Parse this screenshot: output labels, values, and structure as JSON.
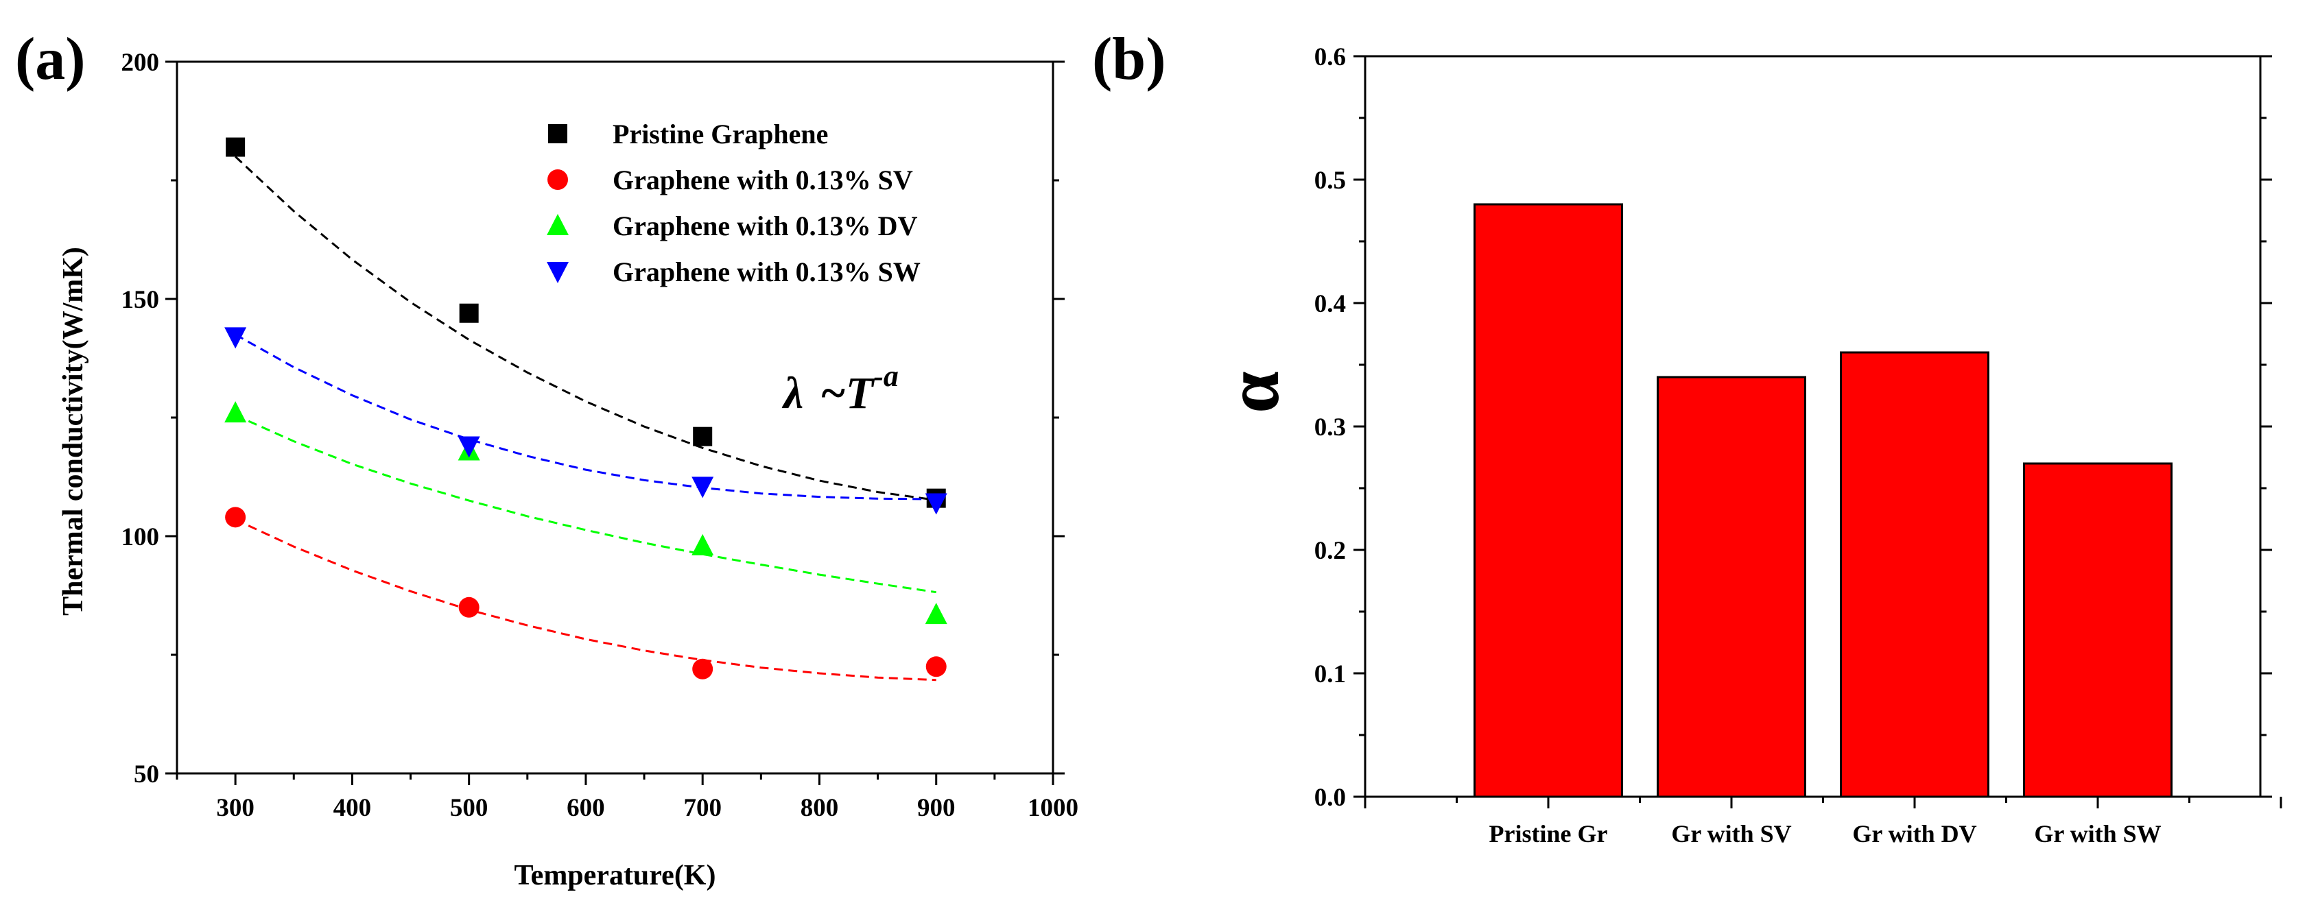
{
  "panel_labels": {
    "a": "(a)",
    "b": "(b)"
  },
  "formula": {
    "lambda": "λ",
    "tilde": "~",
    "T": "T",
    "exponent": "-a"
  },
  "chart_data": [
    {
      "type": "scatter",
      "panel": "(a)",
      "xlabel": "Temperature(K)",
      "ylabel": "Thermal conductivity(W/mK)",
      "xlim": [
        250,
        1000
      ],
      "ylim": [
        50,
        200
      ],
      "xticks": [
        300,
        400,
        500,
        600,
        700,
        800,
        900,
        1000
      ],
      "yticks": [
        50,
        100,
        150,
        200
      ],
      "legend_position": "top-right",
      "series": [
        {
          "name": "Pristine Graphene",
          "marker": "square",
          "color": "#000000",
          "x": [
            300,
            500,
            700,
            900
          ],
          "y": [
            182,
            147,
            121,
            108
          ],
          "fit": {
            "x": [
              300,
              350,
              400,
              450,
              500,
              550,
              600,
              650,
              700,
              750,
              800,
              850,
              900
            ],
            "y": [
              180,
              168.5,
              158.3,
              149.3,
              141.4,
              134.5,
              128.4,
              123.1,
              118.6,
              114.8,
              111.7,
              109.3,
              107.6
            ]
          }
        },
        {
          "name": "Graphene with 0.13% SV",
          "marker": "circle",
          "color": "#ff0000",
          "x": [
            300,
            500,
            700,
            900
          ],
          "y": [
            104,
            85,
            72,
            72.5
          ],
          "fit": {
            "x": [
              300,
              350,
              400,
              450,
              500,
              550,
              600,
              650,
              700,
              750,
              800,
              850,
              900
            ],
            "y": [
              103.5,
              97.8,
              92.8,
              88.4,
              84.5,
              81.2,
              78.3,
              75.9,
              73.9,
              72.3,
              71.1,
              70.2,
              69.7
            ]
          }
        },
        {
          "name": "Graphene with 0.13% DV",
          "marker": "triangle-up",
          "color": "#00ff00",
          "x": [
            300,
            500,
            700,
            900
          ],
          "y": [
            126,
            118,
            98,
            83.5
          ],
          "fit": {
            "x": [
              300,
              350,
              400,
              450,
              500,
              550,
              600,
              650,
              700,
              750,
              800,
              850,
              900
            ],
            "y": [
              125.5,
              120,
              115.2,
              111.1,
              107.5,
              104.2,
              101.3,
              98.6,
              96.2,
              94,
              91.9,
              90,
              88.2
            ]
          }
        },
        {
          "name": "Graphene with 0.13% SW",
          "marker": "triangle-down",
          "color": "#0000ff",
          "x": [
            300,
            500,
            700,
            900
          ],
          "y": [
            142,
            119,
            110.5,
            107
          ],
          "fit": {
            "x": [
              300,
              350,
              400,
              450,
              500,
              550,
              600,
              650,
              700,
              750,
              800,
              850,
              900
            ],
            "y": [
              142.5,
              135.6,
              129.7,
              124.6,
              120.4,
              116.9,
              114,
              111.8,
              110.2,
              109,
              108.3,
              107.9,
              107.8
            ]
          }
        }
      ]
    },
    {
      "type": "bar",
      "panel": "(b)",
      "categories": [
        "Pristine Gr",
        "Gr with SV",
        "Gr with DV",
        "Gr with SW"
      ],
      "values": [
        0.48,
        0.34,
        0.36,
        0.27
      ],
      "ylabel": "α",
      "xlabel": "",
      "ylim": [
        0,
        0.6
      ],
      "yticks": [
        "0.0",
        "0.1",
        "0.2",
        "0.3",
        "0.4",
        "0.5",
        "0.6"
      ],
      "bar_color": "#ff0000"
    }
  ]
}
